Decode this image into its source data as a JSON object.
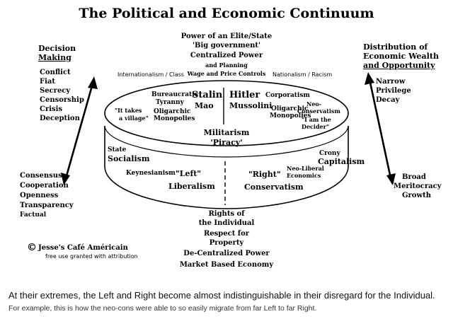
{
  "title": "The Political and Economic Continuum",
  "top": {
    "line1": "Power of an Elite/State",
    "line2": "'Big government'",
    "line3": "Centralized Power",
    "line4": "and Planning",
    "line5": "Wage and Price Controls"
  },
  "upper_left_note": "Internationalism / Class",
  "upper_right_note": "Nationalism / Racism",
  "left_column": {
    "heading_line1": "Decision",
    "heading_line2": "Making",
    "items": [
      "Conflict",
      "Fiat",
      "Secrecy",
      "Censorship",
      "Crisis",
      "Deception"
    ]
  },
  "right_column": {
    "heading_line1": "Distribution of",
    "heading_line2": "Economic Wealth",
    "heading_line3": "and Opportunity",
    "items": [
      "Narrow",
      "Privilege",
      "Decay"
    ]
  },
  "lower_left_list": [
    "Consensus",
    "Cooperation",
    "Openness",
    "Transparency",
    "Factual"
  ],
  "lower_right_list": [
    "Broad",
    "Meritocracy",
    "Growth"
  ],
  "ring_labels": {
    "stalin": "Stalin",
    "mao": "Mao",
    "hitler": "Hitler",
    "mussolini": "Mussolini",
    "bureaucratic_line1": "Bureaucratic",
    "bureaucratic_line2": "Tyranny",
    "oligarchic_left_line1": "Oligarchic",
    "oligarchic_left_line2": "Monopolies",
    "corporatism": "Corporatism",
    "oligarchic_right_line1": "Oligarchic",
    "oligarchic_right_line2": "Monopolies",
    "neo_cons_line1": "Neo-",
    "neo_cons_line2": "Conservatism",
    "village_line1": "\"It takes",
    "village_line2": "a village\"",
    "decider_line1": "\"I am the",
    "decider_line2": "Decider\"",
    "militarism": "Militarism",
    "piracy": "'Piracy'",
    "state_line1": "State",
    "state_line2": "Socialism",
    "crony_line1": "Crony",
    "crony_line2": "Capitalism",
    "keynesianism": "Keynesianism",
    "left": "\"Left\"",
    "liberalism": "Liberalism",
    "right": "\"Right\"",
    "neo_liberal_line1": "Neo-Liberal",
    "neo_liberal_line2": "Economics",
    "conservatism": "Conservatism"
  },
  "bottom": {
    "line1": "Rights of",
    "line2": "the Individual",
    "line3": "Respect for",
    "line4": "Property",
    "line5": "De-Centralized Power",
    "line6": "Market Based Economy"
  },
  "credit": {
    "symbol": "©",
    "name": "Jesse's Café Américain",
    "note": "free use granted with attribution"
  },
  "caption_main": "At their extremes, the Left and Right become almost indistinguishable in their disregard for the Individual.",
  "caption_sub": "For example, this is how the neo-cons were able to so easily migrate from far Left to far Right."
}
